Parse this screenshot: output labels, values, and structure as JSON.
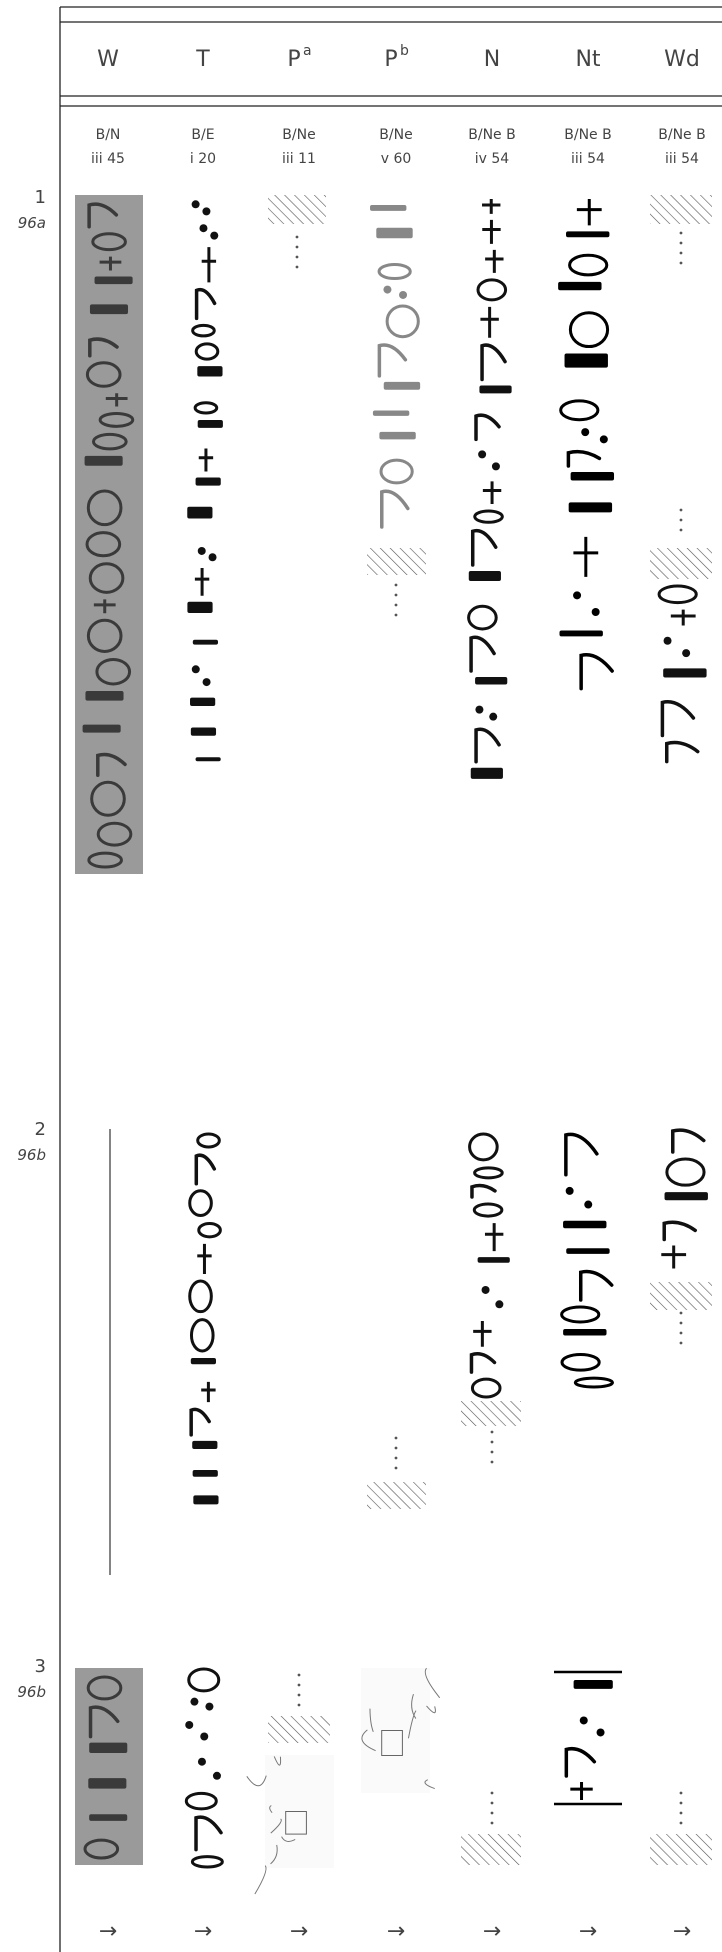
{
  "columns": [
    {
      "siglum": "W",
      "source": [
        "B/N",
        "iii 45"
      ]
    },
    {
      "siglum": "T",
      "source": [
        "B/E",
        "i 20"
      ]
    },
    {
      "siglum": "P",
      "superscript": "a",
      "source": [
        "B/Ne",
        "iii 11"
      ]
    },
    {
      "siglum": "P",
      "superscript": "b",
      "source": [
        "B/Ne",
        "v 60"
      ]
    },
    {
      "siglum": "N",
      "source": [
        "B/Ne B",
        "iv 54"
      ]
    },
    {
      "siglum": "Nt",
      "source": [
        "B/Ne B",
        "iii 54"
      ]
    },
    {
      "siglum": "Wd",
      "source": [
        "B/Ne B",
        "iii 54"
      ]
    }
  ],
  "rows": [
    {
      "number": "1",
      "reference": "96a"
    },
    {
      "number": "2",
      "reference": "96b"
    },
    {
      "number": "3",
      "reference": "96b"
    }
  ],
  "arrows": [
    "→",
    "→",
    "→",
    "→",
    "→",
    "→",
    "→"
  ]
}
